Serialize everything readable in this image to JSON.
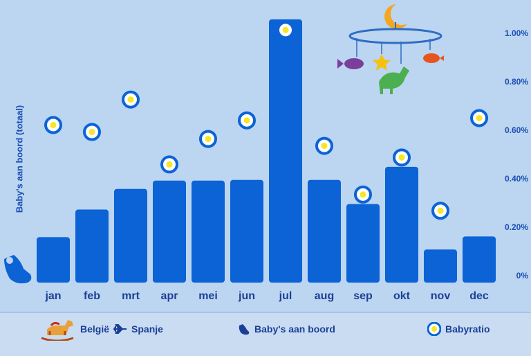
{
  "chart_data": {
    "type": "bar",
    "categories": [
      "jan",
      "feb",
      "mrt",
      "apr",
      "mei",
      "jun",
      "jul",
      "aug",
      "sep",
      "okt",
      "nov",
      "dec"
    ],
    "series": [
      {
        "name": "Baby's aan boord",
        "type": "bar",
        "axis": "left",
        "values": [
          66,
          106,
          136,
          148,
          148,
          149,
          382,
          149,
          114,
          168,
          48,
          67
        ]
      },
      {
        "name": "Babyratio",
        "type": "scatter",
        "axis": "right",
        "values": [
          0.68,
          0.65,
          0.79,
          0.51,
          0.62,
          0.7,
          1.09,
          0.59,
          0.38,
          0.54,
          0.31,
          0.71
        ]
      }
    ],
    "ylabel": "Baby's aan boord (totaal)",
    "y2_ticks": [
      "0%",
      "0.20%",
      "0.40%",
      "0.60%",
      "0.80%",
      "1.00%"
    ],
    "y2_lim": [
      0,
      1.1
    ],
    "ylim": [
      0,
      390
    ],
    "colors": {
      "bar": "#0b63d6",
      "marker_ring": "#0b63d6",
      "marker_fill": "#f4e62b",
      "background": "#bcd5f0"
    }
  },
  "legend": {
    "route_from": "België",
    "route_to": "Spanje",
    "babies_label": "Baby's aan boord",
    "ratio_label": "Babyratio"
  },
  "icons": [
    "rocking-horse-icon",
    "airplane-icon",
    "baby-seat-icon",
    "ratio-dot-icon",
    "baby-mobile-icon"
  ]
}
